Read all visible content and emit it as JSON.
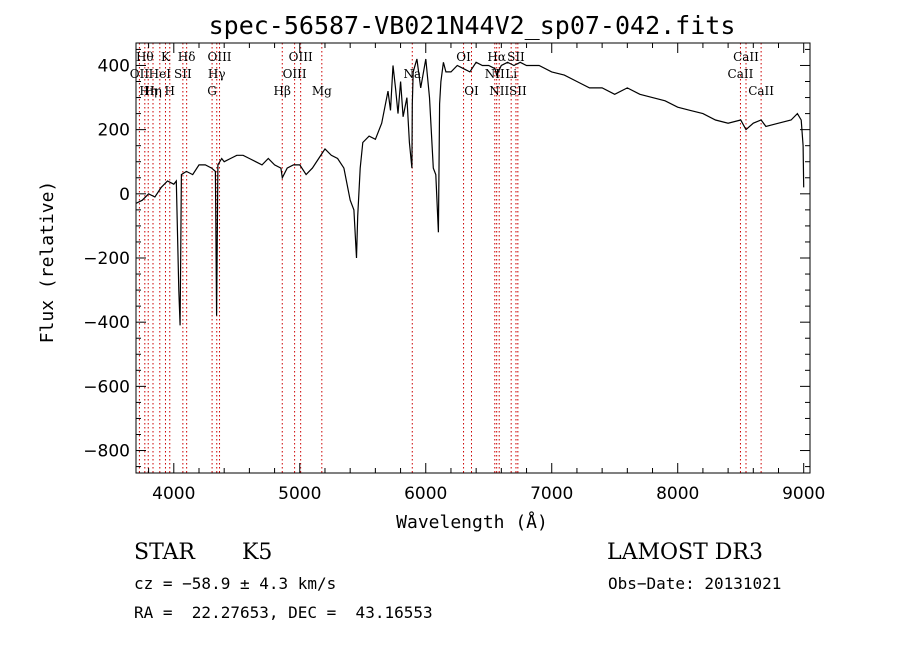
{
  "chart_data": {
    "type": "line",
    "title": "spec-56587-VB021N44V2_sp07-042.fits",
    "xlabel": "Wavelength (Å)",
    "ylabel": "Flux (relative)",
    "xlim": [
      3700,
      9050
    ],
    "ylim": [
      -870,
      470
    ],
    "xticks": [
      4000,
      5000,
      6000,
      7000,
      8000,
      9000
    ],
    "yticks": [
      -800,
      -600,
      -400,
      -200,
      0,
      200,
      400
    ],
    "spectrum": {
      "name": "flux",
      "x": [
        3700,
        3750,
        3800,
        3850,
        3900,
        3950,
        4000,
        4020,
        4040,
        4050,
        4060,
        4100,
        4150,
        4200,
        4250,
        4300,
        4330,
        4340,
        4350,
        4380,
        4400,
        4450,
        4500,
        4550,
        4600,
        4650,
        4700,
        4750,
        4800,
        4850,
        4861,
        4900,
        4950,
        5000,
        5050,
        5100,
        5150,
        5200,
        5250,
        5300,
        5350,
        5400,
        5430,
        5450,
        5460,
        5480,
        5500,
        5550,
        5600,
        5650,
        5700,
        5720,
        5740,
        5760,
        5780,
        5800,
        5820,
        5850,
        5870,
        5890,
        5893,
        5900,
        5930,
        5960,
        6000,
        6030,
        6060,
        6080,
        6100,
        6110,
        6120,
        6140,
        6160,
        6200,
        6250,
        6300,
        6350,
        6400,
        6450,
        6500,
        6550,
        6563,
        6600,
        6650,
        6700,
        6750,
        6800,
        6900,
        7000,
        7100,
        7200,
        7300,
        7400,
        7500,
        7600,
        7700,
        7800,
        7900,
        8000,
        8100,
        8200,
        8300,
        8400,
        8500,
        8542,
        8600,
        8662,
        8700,
        8800,
        8900,
        8950,
        8980,
        8995,
        9000
      ],
      "y": [
        -30,
        -20,
        0,
        -10,
        20,
        40,
        30,
        40,
        -300,
        -410,
        60,
        70,
        60,
        90,
        90,
        80,
        70,
        -380,
        90,
        110,
        100,
        110,
        120,
        120,
        110,
        100,
        90,
        110,
        90,
        80,
        50,
        80,
        90,
        90,
        60,
        80,
        110,
        140,
        120,
        110,
        80,
        -20,
        -50,
        -200,
        -70,
        80,
        160,
        180,
        170,
        220,
        320,
        260,
        400,
        330,
        250,
        350,
        240,
        300,
        160,
        80,
        280,
        380,
        420,
        330,
        420,
        300,
        80,
        60,
        -120,
        280,
        350,
        410,
        380,
        380,
        400,
        390,
        380,
        410,
        400,
        400,
        390,
        370,
        400,
        410,
        400,
        410,
        400,
        400,
        380,
        370,
        350,
        330,
        330,
        310,
        330,
        310,
        300,
        290,
        270,
        260,
        250,
        230,
        220,
        230,
        200,
        220,
        230,
        210,
        220,
        230,
        250,
        230,
        150,
        20
      ]
    },
    "line_markers": [
      {
        "wavelength": 3727,
        "label": "OII",
        "row": 1
      },
      {
        "wavelength": 3770,
        "label": "Hθ",
        "row": 0
      },
      {
        "wavelength": 3797,
        "label": "Hη",
        "row": 2
      },
      {
        "wavelength": 3835,
        "label": "Hη",
        "row": 2
      },
      {
        "wavelength": 3889,
        "label": "HeI",
        "row": 1
      },
      {
        "wavelength": 3934,
        "label": "K",
        "row": 0
      },
      {
        "wavelength": 3968,
        "label": "H",
        "row": 2
      },
      {
        "wavelength": 4072,
        "label": "SII",
        "row": 1
      },
      {
        "wavelength": 4102,
        "label": "Hδ",
        "row": 0
      },
      {
        "wavelength": 4304,
        "label": "G",
        "row": 2
      },
      {
        "wavelength": 4341,
        "label": "Hγ",
        "row": 1
      },
      {
        "wavelength": 4363,
        "label": "OIII",
        "row": 0
      },
      {
        "wavelength": 4861,
        "label": "Hβ",
        "row": 2
      },
      {
        "wavelength": 4959,
        "label": "OIII",
        "row": 1
      },
      {
        "wavelength": 5007,
        "label": "OIII",
        "row": 0
      },
      {
        "wavelength": 5175,
        "label": "Mg",
        "row": 2
      },
      {
        "wavelength": 5893,
        "label": "Na",
        "row": 1
      },
      {
        "wavelength": 6300,
        "label": "OI",
        "row": 0
      },
      {
        "wavelength": 6363,
        "label": "OI",
        "row": 2
      },
      {
        "wavelength": 6548,
        "label": "NII",
        "row": 1
      },
      {
        "wavelength": 6563,
        "label": "Hα",
        "row": 0
      },
      {
        "wavelength": 6583,
        "label": "NII",
        "row": 2
      },
      {
        "wavelength": 6678,
        "label": "Li",
        "row": 1
      },
      {
        "wavelength": 6716,
        "label": "SII",
        "row": 0
      },
      {
        "wavelength": 6731,
        "label": "SII",
        "row": 2
      },
      {
        "wavelength": 8498,
        "label": "CaII",
        "row": 1
      },
      {
        "wavelength": 8542,
        "label": "CaII",
        "row": 0
      },
      {
        "wavelength": 8662,
        "label": "CaII",
        "row": 2
      }
    ]
  },
  "info": {
    "class_label": "STAR",
    "subclass": "K5",
    "survey": "LAMOST DR3",
    "cz": "cz = −58.9 ± 4.3 km/s",
    "obs_date": "Obs−Date: 20131021",
    "coords": "RA =  22.27653, DEC =  43.16553"
  },
  "colors": {
    "spectrum": "#000000",
    "marker": "#cc0000",
    "axis": "#000000",
    "background": "#ffffff"
  }
}
